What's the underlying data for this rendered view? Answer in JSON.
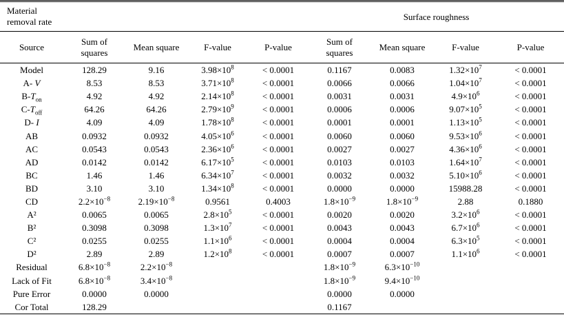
{
  "group_headers": {
    "mrr": [
      "Material",
      "removal rate"
    ],
    "sr": "Surface roughness"
  },
  "columns": [
    [
      "Source"
    ],
    [
      "Sum of",
      "squares"
    ],
    [
      "Mean square"
    ],
    [
      "F-value"
    ],
    [
      "P-value"
    ],
    [
      "Sum of",
      "squares"
    ],
    [
      "Mean square"
    ],
    [
      "F-value"
    ],
    [
      "P-value"
    ]
  ],
  "rows": [
    [
      "Model",
      "128.29",
      "9.16",
      "3.98×10^8",
      "< 0.0001",
      "0.1167",
      "0.0083",
      "1.32×10^7",
      "< 0.0001"
    ],
    [
      "A- _V_",
      "8.53",
      "8.53",
      "3.71×10^8",
      "< 0.0001",
      "0.0066",
      "0.0066",
      "1.04×10^7",
      "< 0.0001"
    ],
    [
      "B-_T_~on~",
      "4.92",
      "4.92",
      "2.14×10^8",
      "< 0.0001",
      "0.0031",
      "0.0031",
      "4.9×10^6",
      "< 0.0001"
    ],
    [
      "C-_T_~off~",
      "64.26",
      "64.26",
      "2.79×10^9",
      "< 0.0001",
      "0.0006",
      "0.0006",
      "9.07×10^5",
      "< 0.0001"
    ],
    [
      "D- _I_",
      "4.09",
      "4.09",
      "1.78×10^8",
      "< 0.0001",
      "0.0001",
      "0.0001",
      "1.13×10^5",
      "< 0.0001"
    ],
    [
      "AB",
      "0.0932",
      "0.0932",
      "4.05×10^6",
      "< 0.0001",
      "0.0060",
      "0.0060",
      "9.53×10^6",
      "< 0.0001"
    ],
    [
      "AC",
      "0.0543",
      "0.0543",
      "2.36×10^6",
      "< 0.0001",
      "0.0027",
      "0.0027",
      "4.36×10^6",
      "< 0.0001"
    ],
    [
      "AD",
      "0.0142",
      "0.0142",
      "6.17×10^5",
      "< 0.0001",
      "0.0103",
      "0.0103",
      "1.64×10^7",
      "< 0.0001"
    ],
    [
      "BC",
      "1.46",
      "1.46",
      "6.34×10^7",
      "< 0.0001",
      "0.0032",
      "0.0032",
      "5.10×10^6",
      "< 0.0001"
    ],
    [
      "BD",
      "3.10",
      "3.10",
      "1.34×10^8",
      "< 0.0001",
      "0.0000",
      "0.0000",
      "15988.28",
      "< 0.0001"
    ],
    [
      "CD",
      "2.2×10^−8",
      "2.19×10^−8",
      "0.9561",
      "0.4003",
      "1.8×10^−9",
      "1.8×10^−9",
      "2.88",
      "0.1880"
    ],
    [
      "A²",
      "0.0065",
      "0.0065",
      "2.8×10^5",
      "< 0.0001",
      "0.0020",
      "0.0020",
      "3.2×10^6",
      "< 0.0001"
    ],
    [
      "B²",
      "0.3098",
      "0.3098",
      "1.3×10^7",
      "< 0.0001",
      "0.0043",
      "0.0043",
      "6.7×10^6",
      "< 0.0001"
    ],
    [
      "C²",
      "0.0255",
      "0.0255",
      "1.1×10^6",
      "< 0.0001",
      "0.0004",
      "0.0004",
      "6.3×10^5",
      "< 0.0001"
    ],
    [
      "D²",
      "2.89",
      "2.89",
      "1.2×10^8",
      "< 0.0001",
      "0.0007",
      "0.0007",
      "1.1×10^6",
      "< 0.0001"
    ],
    [
      "Residual",
      "6.8×10^−8",
      "2.2×10^−8",
      "",
      "",
      "1.8×10^−9",
      "6.3×10^−10",
      "",
      ""
    ],
    [
      "Lack of Fit",
      "6.8×10^−8",
      "3.4×10^−8",
      "",
      "",
      "1.8×10^−9",
      "9.4×10^−10",
      "",
      ""
    ],
    [
      "Pure Error",
      "0.0000",
      "0.0000",
      "",
      "",
      "0.0000",
      "0.0000",
      "",
      ""
    ],
    [
      "Cor Total",
      "128.29",
      "",
      "",
      "",
      "0.1167",
      "",
      "",
      ""
    ]
  ]
}
